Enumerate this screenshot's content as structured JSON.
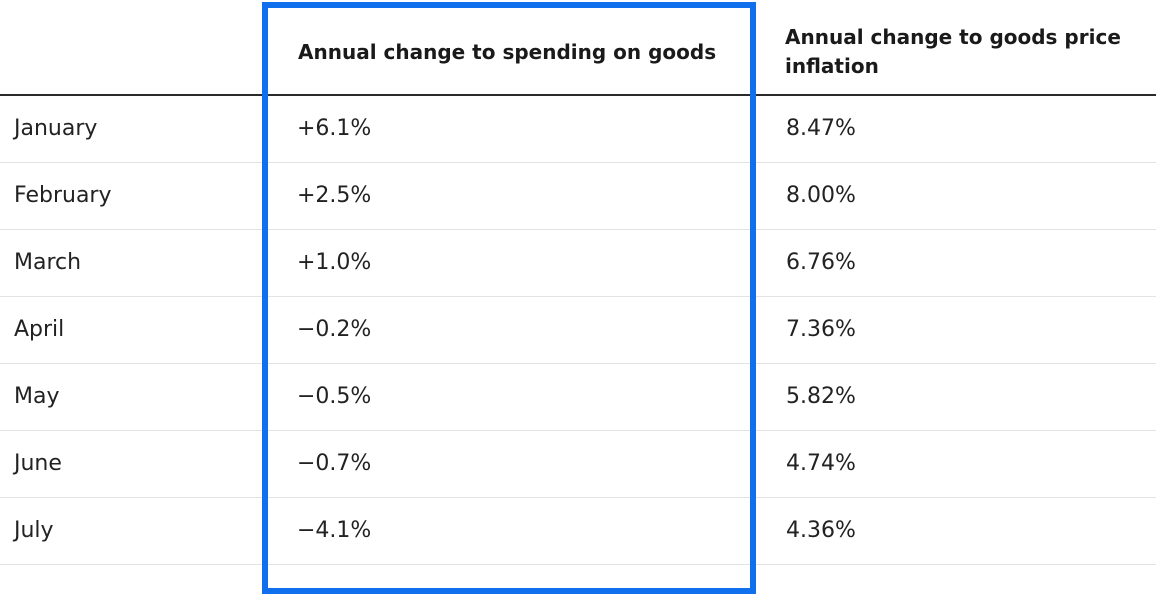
{
  "table": {
    "headers": [
      "",
      "Annual change to spending on goods",
      "Annual change to goods price inflation"
    ],
    "rows": [
      {
        "month": "January",
        "spending_change": "+6.1%",
        "price_inflation": "8.47%"
      },
      {
        "month": "February",
        "spending_change": "+2.5%",
        "price_inflation": "8.00%"
      },
      {
        "month": "March",
        "spending_change": "+1.0%",
        "price_inflation": "6.76%"
      },
      {
        "month": "April",
        "spending_change": "−0.2%",
        "price_inflation": "7.36%"
      },
      {
        "month": "May",
        "spending_change": "−0.5%",
        "price_inflation": "5.82%"
      },
      {
        "month": "June",
        "spending_change": "−0.7%",
        "price_inflation": "4.74%"
      },
      {
        "month": "July",
        "spending_change": "−4.1%",
        "price_inflation": "4.36%"
      }
    ]
  },
  "colors": {
    "highlight_border": "#0f6fec",
    "header_rule": "#2a2a2a",
    "row_rule": "#e3e3e3",
    "text": "#222222"
  }
}
